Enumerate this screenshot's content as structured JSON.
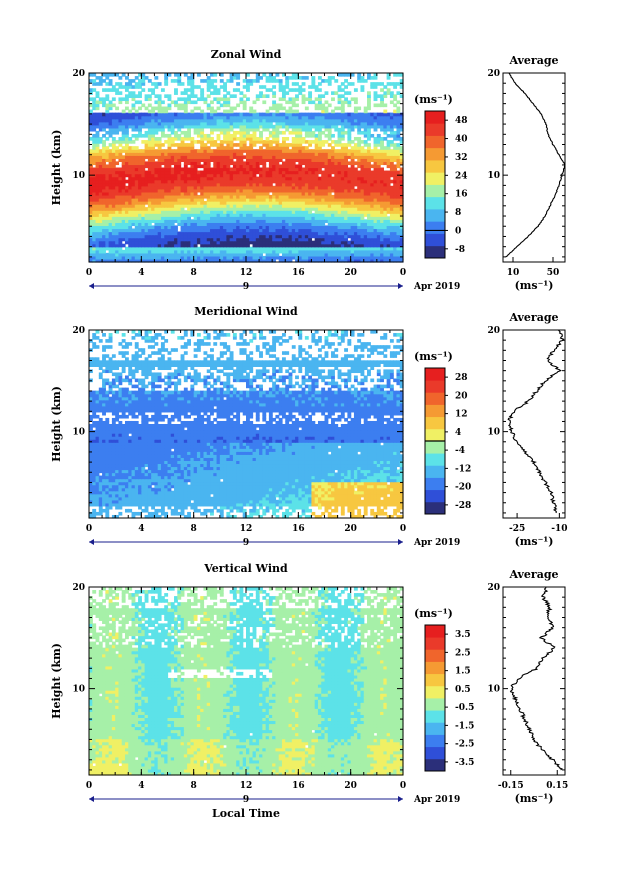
{
  "chart_data": [
    {
      "type": "heatmap",
      "title": "Zonal Wind",
      "xlabel": "",
      "ylabel": "Height (km)",
      "x_ticks": [
        "0",
        "4",
        "8",
        "12",
        "16",
        "20",
        "0"
      ],
      "y_ticks": [
        "10",
        "20"
      ],
      "xlim": [
        0,
        24
      ],
      "ylim": [
        1.5,
        20
      ],
      "day_label": "9",
      "date_label": "Apr 2019",
      "colorbar": {
        "unit": "(ms⁻¹)",
        "ticks": [
          "-8",
          "0",
          "8",
          "16",
          "24",
          "32",
          "40",
          "48"
        ],
        "range": [
          -12,
          52
        ],
        "zero_line": 0
      },
      "average": {
        "title": "Average",
        "xlabel": "(ms⁻¹)",
        "x_ticks": [
          "10",
          "50"
        ],
        "x_tick_values": [
          10,
          50
        ],
        "xlim": [
          0,
          62
        ],
        "y_ticks": [
          "10",
          "20"
        ],
        "profile": {
          "height": [
            2,
            3,
            4,
            5,
            6,
            7,
            8,
            9,
            10,
            11,
            12,
            13,
            14,
            15,
            16,
            17,
            18,
            19,
            20
          ],
          "value": [
            3,
            14,
            25,
            35,
            42,
            47,
            52,
            56,
            59,
            62,
            56,
            50,
            45,
            43,
            38,
            30,
            22,
            12,
            6
          ]
        }
      }
    },
    {
      "type": "heatmap",
      "title": "Meridional Wind",
      "xlabel": "",
      "ylabel": "Height (km)",
      "x_ticks": [
        "0",
        "4",
        "8",
        "12",
        "16",
        "20",
        "0"
      ],
      "y_ticks": [
        "10",
        "20"
      ],
      "xlim": [
        0,
        24
      ],
      "ylim": [
        1.5,
        20
      ],
      "day_label": "9",
      "date_label": "Apr 2019",
      "colorbar": {
        "unit": "(ms⁻¹)",
        "ticks": [
          "-28",
          "-20",
          "-12",
          "-4",
          "4",
          "12",
          "20",
          "28"
        ],
        "range": [
          -32,
          32
        ],
        "zero_line": 0
      },
      "average": {
        "title": "Average",
        "xlabel": "(ms⁻¹)",
        "x_ticks": [
          "-25",
          "-10"
        ],
        "x_tick_values": [
          -25,
          -10
        ],
        "xlim": [
          -30,
          -8
        ],
        "y_ticks": [
          "10",
          "20"
        ],
        "profile": {
          "height": [
            2,
            3,
            4,
            5,
            6,
            7,
            8,
            9,
            10,
            11,
            12,
            13,
            14,
            15,
            16,
            17,
            18,
            19,
            20
          ],
          "value": [
            -11,
            -12,
            -13,
            -15,
            -17,
            -19,
            -22,
            -25,
            -27,
            -28,
            -26,
            -21,
            -18,
            -15,
            -10,
            -14,
            -12,
            -9,
            -10
          ]
        }
      }
    },
    {
      "type": "heatmap",
      "title": "Vertical Wind",
      "xlabel": "Local Time",
      "ylabel": "Height (km)",
      "x_ticks": [
        "0",
        "4",
        "8",
        "12",
        "16",
        "20",
        "0"
      ],
      "y_ticks": [
        "10",
        "20"
      ],
      "xlim": [
        0,
        24
      ],
      "ylim": [
        1.5,
        20
      ],
      "day_label": "9",
      "date_label": "Apr 2019",
      "colorbar": {
        "unit": "(ms⁻¹)",
        "ticks": [
          "-3.5",
          "-2.5",
          "-1.5",
          "-0.5",
          "0.5",
          "1.5",
          "2.5",
          "3.5"
        ],
        "range": [
          -4,
          4
        ],
        "zero_line": null
      },
      "average": {
        "title": "Average",
        "xlabel": "(ms⁻¹)",
        "x_ticks": [
          "-0.15",
          "0.15"
        ],
        "x_tick_values": [
          -0.15,
          0.15
        ],
        "xlim": [
          -0.2,
          0.2
        ],
        "y_ticks": [
          "10",
          "20"
        ],
        "profile": {
          "height": [
            2,
            3,
            4,
            5,
            6,
            7,
            8,
            9,
            10,
            11,
            12,
            13,
            14,
            15,
            16,
            17,
            18,
            19,
            20
          ],
          "value": [
            0.18,
            0.12,
            0.05,
            0.0,
            -0.03,
            -0.06,
            -0.09,
            -0.12,
            -0.15,
            -0.1,
            0.02,
            0.06,
            0.13,
            0.05,
            0.12,
            0.09,
            0.1,
            0.06,
            0.08
          ]
        }
      }
    }
  ]
}
